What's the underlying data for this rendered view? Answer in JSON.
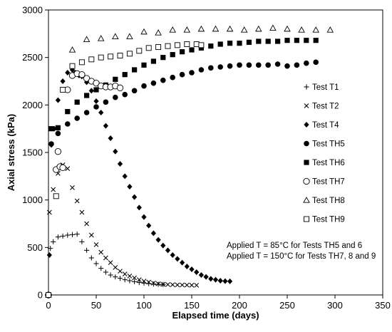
{
  "chart_data": {
    "type": "scatter",
    "xlabel": "Elapsed time (days)",
    "ylabel": "Axial stress (kPa)",
    "xlim": [
      0,
      350
    ],
    "ylim": [
      0,
      3000
    ],
    "xticks": [
      0,
      50,
      100,
      150,
      200,
      250,
      300,
      350
    ],
    "yticks": [
      0,
      500,
      1000,
      1500,
      2000,
      2500,
      3000
    ],
    "grid": false,
    "legend_position": "right",
    "annotations": [
      "Applied T = 85°C for Tests TH5 and 6",
      "Applied T = 150°C for Tests TH7, 8 and 9"
    ],
    "series": [
      {
        "name": "Test T1",
        "marker": "plus",
        "x": [
          0,
          2,
          5,
          10,
          15,
          20,
          25,
          30,
          35,
          40,
          45,
          50,
          55,
          60,
          65,
          70,
          75,
          80,
          85,
          90,
          95,
          100,
          105,
          110,
          115,
          120
        ],
        "y": [
          0,
          490,
          560,
          610,
          620,
          630,
          635,
          640,
          560,
          470,
          390,
          330,
          280,
          240,
          210,
          190,
          175,
          160,
          150,
          140,
          130,
          125,
          120,
          115,
          112,
          110
        ]
      },
      {
        "name": "Test T2",
        "marker": "x",
        "x": [
          0,
          1,
          5,
          10,
          15,
          20,
          25,
          30,
          35,
          40,
          45,
          50,
          55,
          60,
          65,
          70,
          75,
          80,
          85,
          90,
          95,
          100,
          105,
          110,
          115,
          120,
          125,
          130,
          135,
          140,
          145,
          150,
          155
        ],
        "y": [
          0,
          870,
          1110,
          1280,
          1370,
          1330,
          1130,
          990,
          870,
          750,
          630,
          530,
          450,
          390,
          340,
          290,
          250,
          220,
          200,
          180,
          160,
          145,
          135,
          125,
          118,
          112,
          110,
          108,
          106,
          105,
          104,
          103,
          102
        ]
      },
      {
        "name": "Test T4",
        "marker": "diamond",
        "x": [
          0,
          1,
          3,
          6,
          10,
          15,
          20,
          25,
          28,
          32,
          35,
          40,
          45,
          50,
          55,
          60,
          65,
          70,
          75,
          80,
          85,
          90,
          95,
          100,
          105,
          110,
          115,
          120,
          125,
          130,
          135,
          140,
          145,
          150,
          155,
          160,
          165,
          170,
          175,
          180,
          185,
          190
        ],
        "y": [
          0,
          420,
          1580,
          1750,
          2050,
          2250,
          2340,
          2370,
          2340,
          2310,
          2300,
          2240,
          2150,
          2040,
          1920,
          1780,
          1650,
          1510,
          1380,
          1250,
          1140,
          1030,
          920,
          820,
          730,
          650,
          580,
          520,
          470,
          420,
          380,
          340,
          300,
          270,
          240,
          210,
          190,
          170,
          160,
          150,
          145,
          143
        ]
      },
      {
        "name": "Test TH5",
        "marker": "circle",
        "x": [
          0,
          3,
          10,
          20,
          30,
          40,
          50,
          60,
          70,
          80,
          90,
          100,
          110,
          120,
          130,
          140,
          150,
          160,
          170,
          180,
          190,
          200,
          210,
          220,
          230,
          240,
          250,
          260,
          270,
          280
        ],
        "y": [
          0,
          1590,
          1700,
          1800,
          1860,
          1920,
          1980,
          2030,
          2080,
          2110,
          2150,
          2200,
          2230,
          2260,
          2290,
          2320,
          2340,
          2370,
          2390,
          2400,
          2410,
          2420,
          2420,
          2420,
          2420,
          2430,
          2410,
          2420,
          2440,
          2450
        ]
      },
      {
        "name": "Test TH6",
        "marker": "square",
        "x": [
          0,
          3,
          10,
          20,
          30,
          40,
          50,
          60,
          70,
          80,
          90,
          100,
          110,
          120,
          130,
          140,
          150,
          160,
          170,
          180,
          190,
          200,
          210,
          220,
          230,
          240,
          250,
          260,
          270,
          280
        ],
        "y": [
          0,
          1750,
          1760,
          1930,
          2030,
          2100,
          2160,
          2210,
          2270,
          2320,
          2370,
          2420,
          2460,
          2500,
          2530,
          2560,
          2580,
          2600,
          2620,
          2640,
          2650,
          2650,
          2660,
          2670,
          2670,
          2670,
          2680,
          2680,
          2680,
          2680
        ]
      },
      {
        "name": "Test TH7",
        "marker": "circle-open",
        "x": [
          0,
          8,
          10,
          12,
          15,
          20,
          25,
          30,
          35,
          40,
          45,
          50,
          55,
          60,
          65,
          70,
          75
        ],
        "y": [
          0,
          1320,
          1510,
          1350,
          1340,
          2160,
          2310,
          2330,
          2320,
          2280,
          2250,
          2230,
          2200,
          2190,
          2190,
          2200,
          2180
        ]
      },
      {
        "name": "Test TH8",
        "marker": "triangle-open",
        "x": [
          0,
          25,
          40,
          55,
          70,
          85,
          100,
          115,
          130,
          145,
          160,
          175,
          190,
          205,
          220,
          235,
          250,
          265,
          280,
          295
        ],
        "y": [
          0,
          2580,
          2690,
          2700,
          2720,
          2720,
          2770,
          2760,
          2790,
          2790,
          2800,
          2800,
          2800,
          2790,
          2800,
          2810,
          2800,
          2790,
          2790,
          2790
        ]
      },
      {
        "name": "Test TH9",
        "marker": "square-open",
        "x": [
          0,
          8,
          15,
          25,
          35,
          45,
          55,
          65,
          75,
          85,
          95,
          105,
          115,
          125,
          135,
          145,
          155,
          160
        ],
        "y": [
          0,
          1040,
          2160,
          2410,
          2450,
          2480,
          2500,
          2510,
          2520,
          2540,
          2570,
          2600,
          2610,
          2620,
          2630,
          2640,
          2640,
          2630
        ]
      }
    ]
  }
}
